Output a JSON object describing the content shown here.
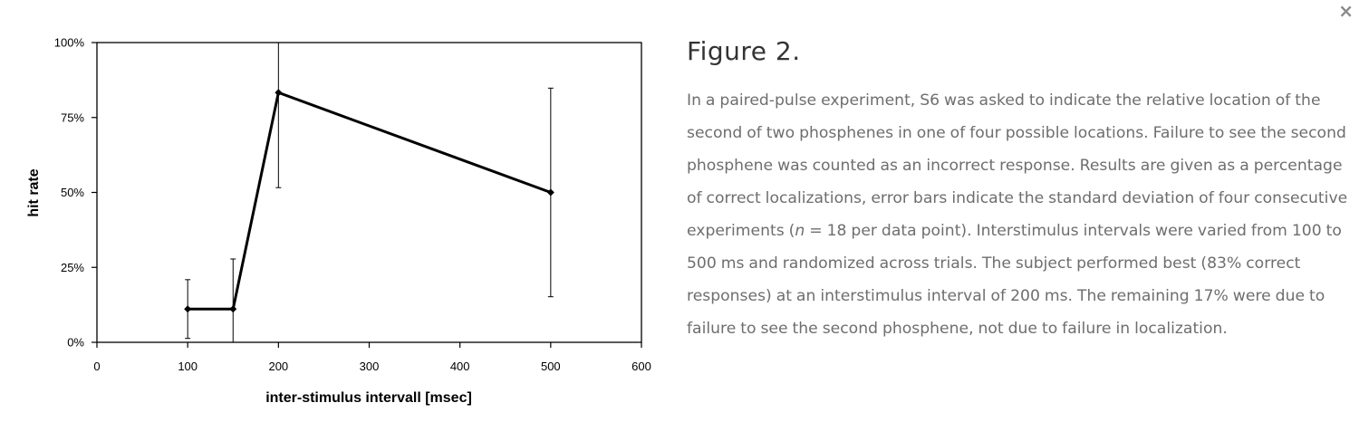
{
  "close_icon": "×",
  "chart_data": {
    "type": "line",
    "title": "",
    "xlabel": "inter-stimulus intervall [msec]",
    "ylabel": "hit rate",
    "xlim": [
      0,
      600
    ],
    "ylim": [
      0,
      100
    ],
    "x_ticks": [
      0,
      100,
      200,
      300,
      400,
      500,
      600
    ],
    "x_tick_labels": [
      "0",
      "100",
      "200",
      "300",
      "400",
      "500",
      "600"
    ],
    "y_ticks": [
      0,
      25,
      50,
      75,
      100
    ],
    "y_tick_labels": [
      "0%",
      "25%",
      "50%",
      "75%",
      "100%"
    ],
    "grid": false,
    "series": [
      {
        "x": [
          100,
          150,
          200,
          500
        ],
        "y": [
          11.1,
          11.1,
          83.3,
          50
        ],
        "err_low": [
          1.3,
          0,
          51.6,
          15.2
        ],
        "err_high": [
          20.9,
          27.8,
          100,
          84.8
        ]
      }
    ]
  },
  "caption": {
    "title": "Figure 2.",
    "text_before_n": "In a paired-pulse experiment, S6 was asked to indicate the relative location of the second of two phosphenes in one of four possible locations. Failure to see the second phosphene was counted as an incorrect response. Results are given as a percentage of correct localizations, error bars indicate the standard deviation of four consecutive experiments (",
    "n_symbol": "n",
    "text_after_n": " = 18 per data point). Interstimulus intervals were varied from 100 to 500 ms and randomized across trials. The subject performed best (83% correct responses) at an interstimulus interval of 200 ms. The remaining 17% were due to failure to see the second phosphene, not due to failure in localization."
  }
}
